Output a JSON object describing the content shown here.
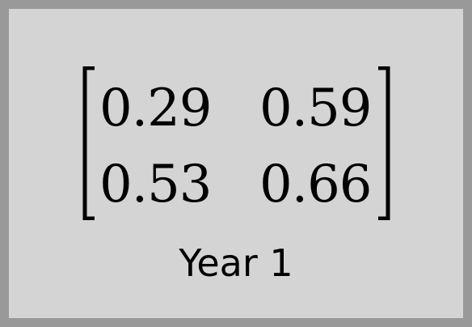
{
  "matrix": {
    "rows": [
      [
        "0.29",
        "0.59"
      ],
      [
        "0.53",
        "0.66"
      ]
    ]
  },
  "caption": "Year 1",
  "colors": {
    "background": "#d4d4d4",
    "border": "#999999",
    "text": "#000000"
  }
}
